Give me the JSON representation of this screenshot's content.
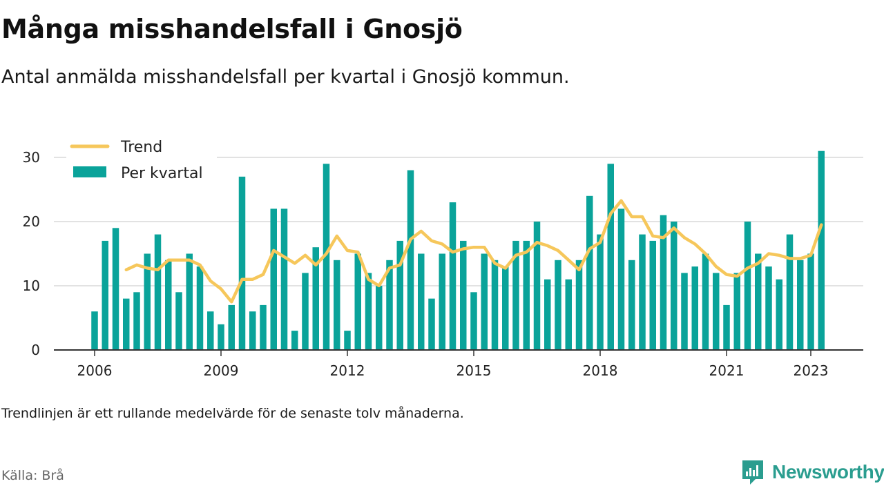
{
  "header": {
    "title": "Många misshandelsfall i Gnosjö",
    "subtitle": "Antal anmälda misshandelsfall per kvartal i Gnosjö kommun."
  },
  "footer": {
    "note": "Trendlinjen är ett rullande medelvärde för de senaste tolv månaderna.",
    "source": "Källa: Brå",
    "brand": "Newsworthy",
    "brand_icon": "newsworthy-logo-icon"
  },
  "colors": {
    "bar": "#0aa39a",
    "trend": "#f6c75b",
    "grid": "#d9d9d9",
    "axis": "#333333",
    "brand": "#2a9d8f"
  },
  "chart_data": {
    "type": "bar",
    "x_tick_labels": [
      "2006",
      "2009",
      "2012",
      "2015",
      "2018",
      "2021",
      "2023"
    ],
    "x_tick_years": [
      2006,
      2009,
      2012,
      2015,
      2018,
      2021,
      2023
    ],
    "y_ticks": [
      0,
      10,
      20,
      30
    ],
    "ylim": [
      0,
      30
    ],
    "grid": true,
    "legend_position": "top-left",
    "series": [
      {
        "name": "Per kvartal",
        "kind": "bar",
        "start": "2006 Q1",
        "values": [
          6,
          17,
          19,
          8,
          9,
          15,
          18,
          14,
          9,
          15,
          13,
          6,
          4,
          7,
          27,
          6,
          7,
          22,
          22,
          3,
          12,
          16,
          29,
          14,
          3,
          15,
          12,
          10,
          14,
          17,
          28,
          15,
          8,
          15,
          23,
          17,
          9,
          15,
          14,
          13,
          17,
          17,
          20,
          11,
          14,
          11,
          14,
          24,
          18,
          29,
          22,
          14,
          18,
          17,
          21,
          20,
          12,
          13,
          15,
          12,
          7,
          12,
          20,
          15,
          13,
          11,
          18,
          14,
          15,
          31
        ]
      },
      {
        "name": "Trend",
        "kind": "line",
        "start": "2006 Q4",
        "values": [
          12.5,
          13.25,
          12.75,
          12.5,
          14.0,
          14.0,
          14.0,
          13.25,
          10.75,
          9.5,
          7.5,
          11.0,
          11.0,
          11.75,
          15.5,
          14.5,
          13.5,
          14.75,
          13.25,
          15.0,
          17.75,
          15.5,
          15.25,
          11.0,
          10.0,
          12.75,
          13.25,
          17.25,
          18.5,
          17.0,
          16.5,
          15.25,
          15.75,
          16.0,
          16.0,
          13.5,
          12.75,
          14.75,
          15.25,
          16.75,
          16.25,
          15.5,
          14.0,
          12.5,
          15.75,
          16.75,
          21.25,
          23.25,
          20.75,
          20.75,
          17.75,
          17.5,
          19.0,
          17.5,
          16.5,
          15.0,
          13.0,
          11.75,
          11.5,
          12.75,
          13.5,
          15.0,
          14.75,
          14.25,
          14.25,
          14.75,
          19.5
        ]
      }
    ]
  }
}
